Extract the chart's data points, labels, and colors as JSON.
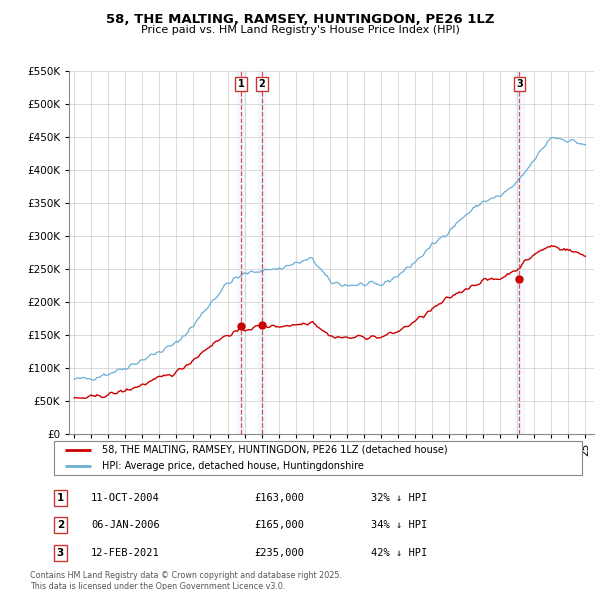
{
  "title": "58, THE MALTING, RAMSEY, HUNTINGDON, PE26 1LZ",
  "subtitle": "Price paid vs. HM Land Registry's House Price Index (HPI)",
  "hpi_color": "#6baed6",
  "hpi_fill_color": "#ddeeff",
  "price_color": "#cc0000",
  "dashed_color": "#cc3333",
  "col_shade_color": "#ddeeff",
  "background_color": "#ffffff",
  "grid_color": "#cccccc",
  "ylim": [
    0,
    550000
  ],
  "yticks": [
    0,
    50000,
    100000,
    150000,
    200000,
    250000,
    300000,
    350000,
    400000,
    450000,
    500000,
    550000
  ],
  "ytick_labels": [
    "£0",
    "£50K",
    "£100K",
    "£150K",
    "£200K",
    "£250K",
    "£300K",
    "£350K",
    "£400K",
    "£450K",
    "£500K",
    "£550K"
  ],
  "xlim_start": 1994.7,
  "xlim_end": 2025.5,
  "transactions": [
    {
      "num": 1,
      "date": "11-OCT-2004",
      "price": 163000,
      "pct": "32%",
      "x": 2004.78
    },
    {
      "num": 2,
      "date": "06-JAN-2006",
      "price": 165000,
      "pct": "34%",
      "x": 2006.02
    },
    {
      "num": 3,
      "date": "12-FEB-2021",
      "price": 235000,
      "pct": "42%",
      "x": 2021.12
    }
  ],
  "legend_line1": "58, THE MALTING, RAMSEY, HUNTINGDON, PE26 1LZ (detached house)",
  "legend_line2": "HPI: Average price, detached house, Huntingdonshire",
  "footnote": "Contains HM Land Registry data © Crown copyright and database right 2025.\nThis data is licensed under the Open Government Licence v3.0."
}
